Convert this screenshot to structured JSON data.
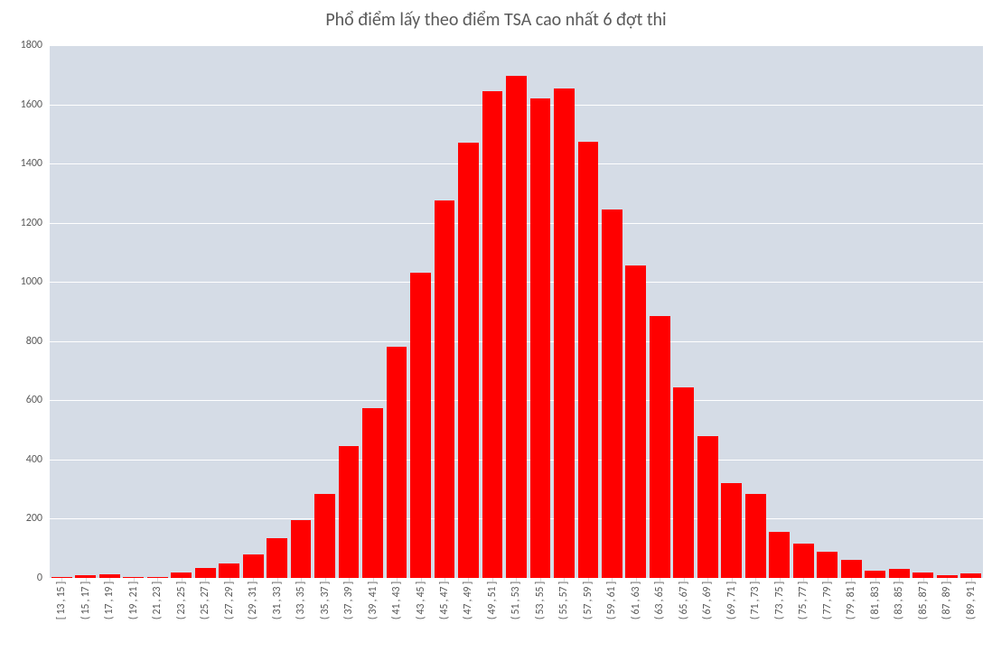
{
  "chart": {
    "type": "histogram",
    "title": "Phổ điểm lấy theo điểm TSA cao nhất 6 đợt thi",
    "title_fontsize": 20,
    "title_color": "#595959",
    "plot_background": "#d5dce6",
    "chart_background": "#ffffff",
    "grid_color": "#ffffff",
    "tick_label_color": "#595959",
    "tick_fontsize": 12,
    "x_tick_fontsize": 12,
    "bar_color": "#ff0000",
    "bar_width_ratio": 0.86,
    "ylim": [
      0,
      1800
    ],
    "ytick_step": 200,
    "y_ticks": [
      0,
      200,
      400,
      600,
      800,
      1000,
      1200,
      1400,
      1600,
      1800
    ],
    "categories": [
      "[ 13 , 15 ]",
      "( 15 , 17 ]",
      "( 17 , 19 ]",
      "( 19 , 21 ]",
      "( 21 , 23 ]",
      "( 23 , 25 ]",
      "( 25 , 27 ]",
      "( 27 , 29 ]",
      "( 29 , 31 ]",
      "( 31 , 33 ]",
      "( 33 , 35 ]",
      "( 35 , 37 ]",
      "( 37 , 39 ]",
      "( 39 , 41 ]",
      "( 41 , 43 ]",
      "( 43 , 45 ]",
      "( 45 , 47 ]",
      "( 47 , 49 ]",
      "( 49 , 51 ]",
      "( 51 , 53 ]",
      "( 53 , 55 ]",
      "( 55 , 57 ]",
      "( 57 , 59 ]",
      "( 59 , 61 ]",
      "( 61 , 63 ]",
      "( 63 , 65 ]",
      "( 65 , 67 ]",
      "( 67 , 69 ]",
      "( 69 , 71 ]",
      "( 71 , 73 ]",
      "( 73 , 75 ]",
      "( 75 , 77 ]",
      "( 77 , 79 ]",
      "( 79 , 81 ]",
      "( 81 , 83 ]",
      "( 83 , 85 ]",
      "( 85 , 87 ]",
      "( 87 , 89 ]",
      "( 89 , 91 ]"
    ],
    "values": [
      2,
      10,
      12,
      2,
      4,
      18,
      35,
      50,
      80,
      135,
      195,
      285,
      445,
      575,
      780,
      1030,
      1275,
      1470,
      1645,
      1695,
      1620,
      1655,
      1475,
      1245,
      1055,
      885,
      645,
      480,
      320,
      285,
      155,
      115,
      90,
      60,
      25,
      32,
      18,
      10,
      14
    ]
  }
}
